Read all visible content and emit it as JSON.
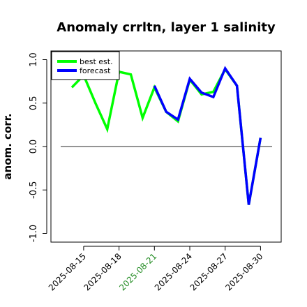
{
  "chart_data": {
    "type": "line",
    "title": "Anomaly crrltn, layer 1 salinity",
    "ylabel": "anom. corr.",
    "xlabel": "",
    "ylim": [
      -1.0,
      1.0
    ],
    "yticks": [
      "-1.0",
      "-0.5",
      "0.0",
      "0.5",
      "1.0"
    ],
    "xticks": [
      "2025-08-15",
      "2025-08-18",
      "2025-08-21",
      "2025-08-24",
      "2025-08-27",
      "2025-08-30"
    ],
    "highlighted_xtick": "2025-08-21",
    "highlight_color": "#228b22",
    "reference_line": 0,
    "grid": false,
    "legend_position": "top-left",
    "series": [
      {
        "name": "best est.",
        "color": "#00ff00",
        "x": [
          "2025-08-14",
          "2025-08-15",
          "2025-08-16",
          "2025-08-17",
          "2025-08-18",
          "2025-08-19",
          "2025-08-20",
          "2025-08-21",
          "2025-08-22",
          "2025-08-23",
          "2025-08-24",
          "2025-08-25",
          "2025-08-26",
          "2025-08-27",
          "2025-08-28",
          "2025-08-29",
          "2025-08-30"
        ],
        "values": [
          0.68,
          0.82,
          0.5,
          0.2,
          0.86,
          0.83,
          0.33,
          0.68,
          0.4,
          0.29,
          0.77,
          0.6,
          0.63,
          0.89,
          0.7,
          -0.67,
          0.1
        ]
      },
      {
        "name": "forecast",
        "color": "#0000ff",
        "x": [
          "2025-08-21",
          "2025-08-22",
          "2025-08-23",
          "2025-08-24",
          "2025-08-25",
          "2025-08-26",
          "2025-08-27",
          "2025-08-28",
          "2025-08-29",
          "2025-08-30"
        ],
        "values": [
          0.7,
          0.4,
          0.31,
          0.78,
          0.62,
          0.57,
          0.9,
          0.7,
          -0.67,
          0.1
        ]
      }
    ]
  }
}
